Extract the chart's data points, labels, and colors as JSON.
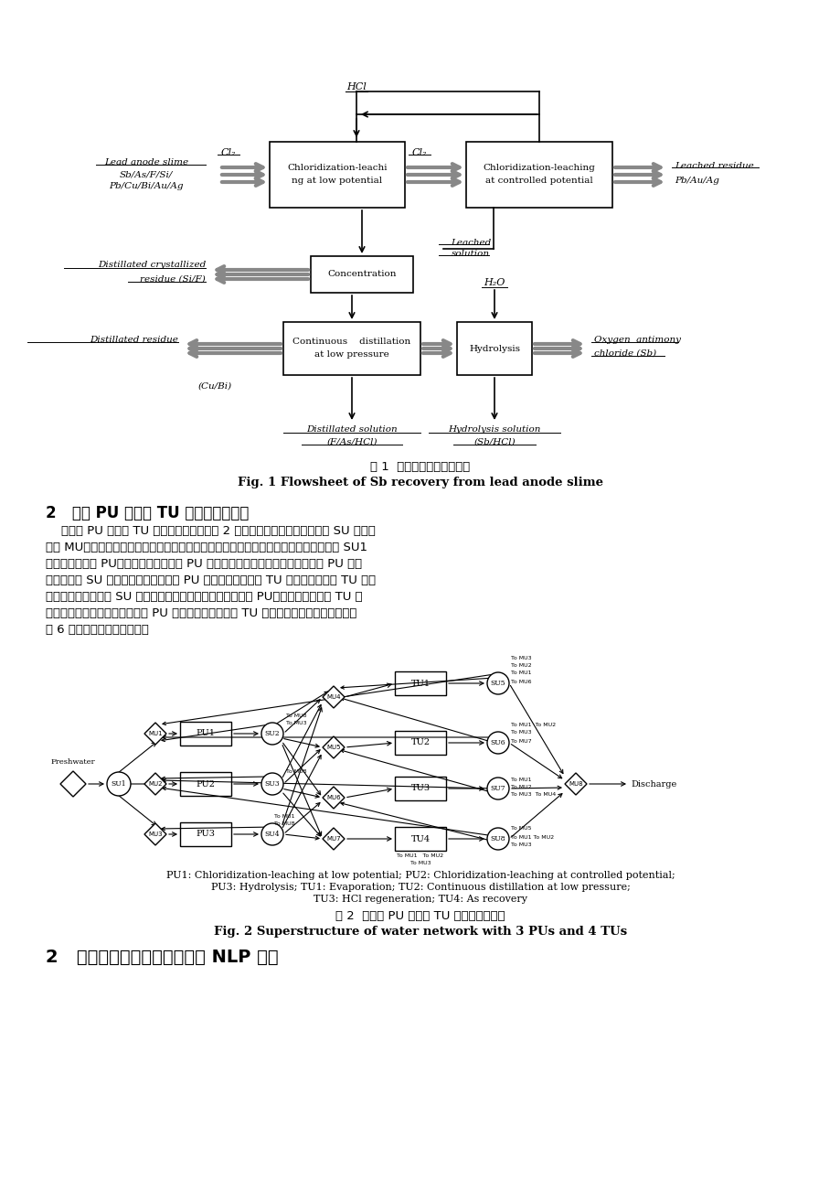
{
  "page_bg": "#ffffff",
  "page_width": 9.2,
  "page_height": 13.02,
  "dpi": 100,
  "fig1_title_cn": "图 1  铅阳极泥锑回收流程图",
  "fig1_title_en": "Fig. 1 Flowsheet of Sb recovery from lead anode slime",
  "section2_heading": "2   三个 PU 与四个 TU 的水网络超结构",
  "section2_body_lines": [
    "    含三个 PU 与四个 TU 的水网络超结构如图 2 所示，水网络还包括分离单元 SU 和混合",
    "单元 MU，图中箭头只表示水相流动，不显示固相。图中可见，新鲜水进入水网络后经过 SU1",
    "分成三股进各个 PU，流量不为零就表示 PU 需要新鲜水，反之则不需要。从每个 PU 出来",
    "的溶液经过 SU 分离可以直接进入其它 PU 回用，也可以进入 TU 处理。进入每个 TU 的流",
    "股在废水再生后经过 SU 分离可以直接排放，可以再生回用至 PU，也可以送入其它 TU 继",
    "续再生。考虑本过程特征，所有 PU 均不直接排放，所有 TU 均不接受新鲜水，每个单元各",
    "有 6 个不同去向的出口流股。"
  ],
  "fig2_caption_cn": "图 2  含三个 PU 和四个 TU 的水网络超结构",
  "fig2_caption_en": "Fig. 2 Superstructure of water network with 3 PUs and 4 TUs",
  "fig2_pu_line1": "PU1: Chloridization-leaching at low potential; PU2: Chloridization-leaching at controlled potential;",
  "fig2_pu_line2": "PU3: Hydrolysis; TU1: Evaporation; TU2: Continuous distillation at low pressure;",
  "fig2_pu_line3": "TU3: HCl regeneration; TU4: As recovery",
  "section3_heading": "2   铅阳极泥锑回水网络优化的 NLP 模型"
}
